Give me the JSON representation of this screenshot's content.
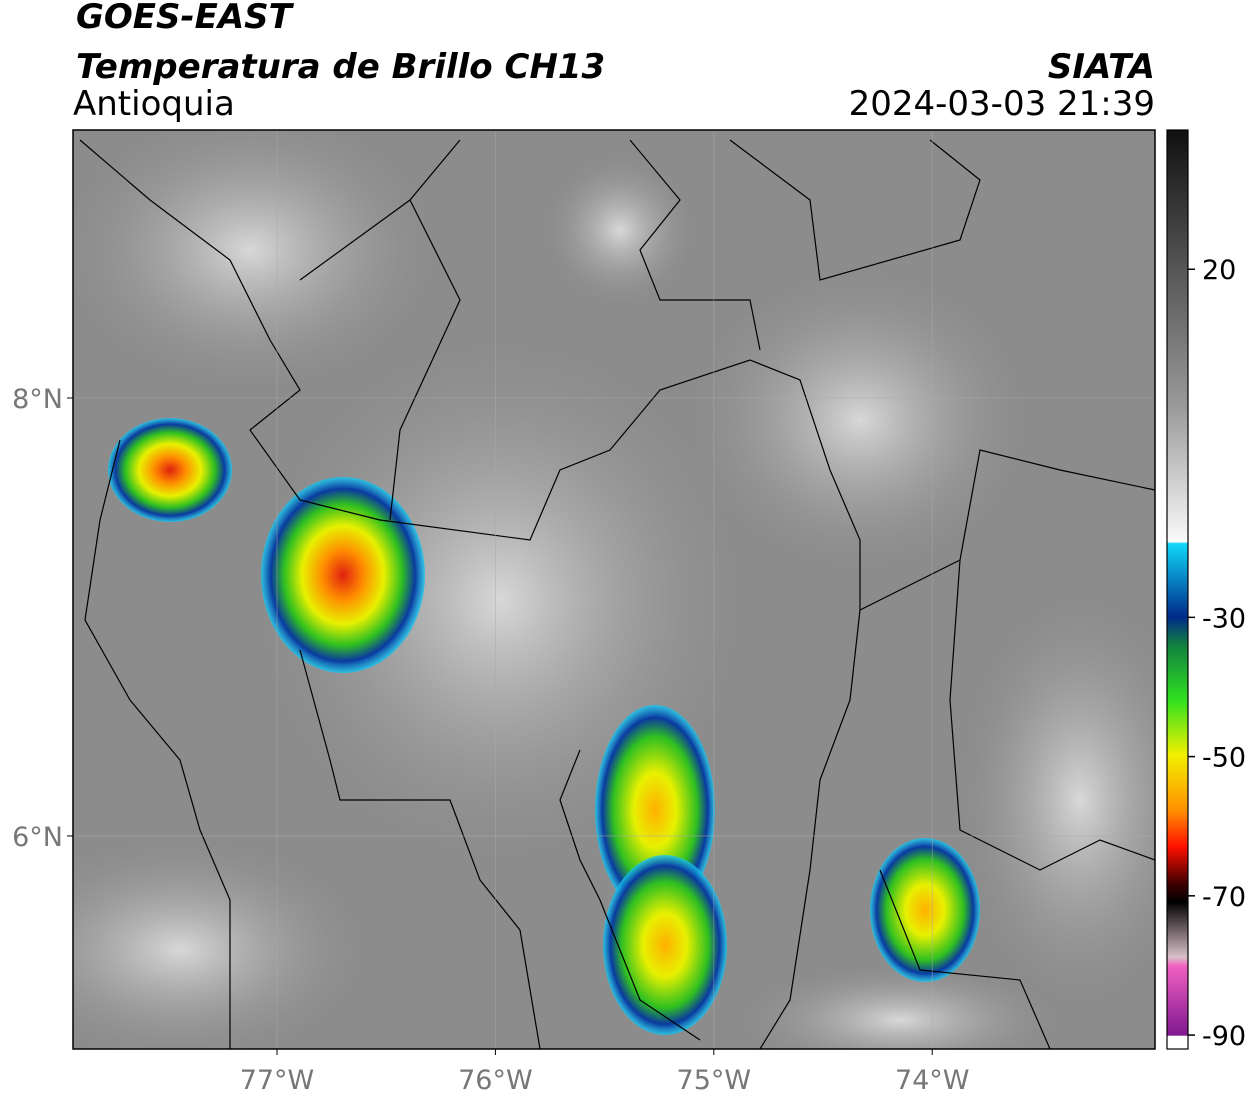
{
  "header": {
    "title": "GOES-EAST",
    "subtitle": "Temperatura de Brillo CH13",
    "region": "Antioquia",
    "source": "SIATA",
    "timestamp": "2024-03-03 21:39"
  },
  "map": {
    "lon_range": [
      -77.934,
      -72.98
    ],
    "lat_range": [
      5.027,
      9.224
    ],
    "lon_ticks": [
      {
        "value": -77,
        "label": "77°W"
      },
      {
        "value": -76,
        "label": "76°W"
      },
      {
        "value": -75,
        "label": "75°W"
      },
      {
        "value": -74,
        "label": "74°W"
      }
    ],
    "lat_ticks": [
      {
        "value": 8,
        "label": "8°N"
      },
      {
        "value": 6,
        "label": "6°N"
      }
    ]
  },
  "colorbar": {
    "range": [
      -92,
      40
    ],
    "ticks": [
      20,
      -30,
      -50,
      -70,
      -90
    ]
  }
}
